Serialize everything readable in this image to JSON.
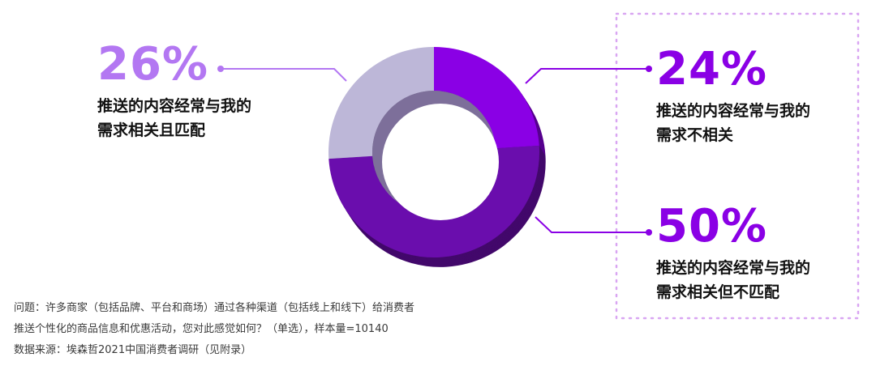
{
  "chart_data": {
    "type": "pie",
    "variant": "donut",
    "categories": [
      "推送的内容经常与我的需求不相关",
      "推送的内容经常与我的需求相关但不匹配",
      "推送的内容经常与我的需求相关且匹配"
    ],
    "values": [
      24,
      50,
      26
    ],
    "unit": "%",
    "colors": [
      "#8A00E5",
      "#6A0DAD",
      "#BDB7D8"
    ],
    "callouts": [
      {
        "value_label": "26%",
        "lines": [
          "推送的内容经常与我的",
          "需求相关且匹配"
        ],
        "color": "#B377F2"
      },
      {
        "value_label": "24%",
        "lines": [
          "推送的内容经常与我的",
          "需求不相关"
        ],
        "color": "#8A00E5"
      },
      {
        "value_label": "50%",
        "lines": [
          "推送的内容经常与我的",
          "需求相关但不匹配"
        ],
        "color": "#8A00E5"
      }
    ],
    "highlight_box_color": "#D9A6F2",
    "legend": "none",
    "grid": false
  },
  "footnote": {
    "question_line1": "问题：许多商家（包括品牌、平台和商场）通过各种渠道（包括线上和线下）给消费者",
    "question_line2": "推送个性化的商品信息和优惠活动，您对此感觉如何？（单选），样本量=10140",
    "source": "数据来源：埃森哲2021中国消费者调研（见附录）"
  }
}
